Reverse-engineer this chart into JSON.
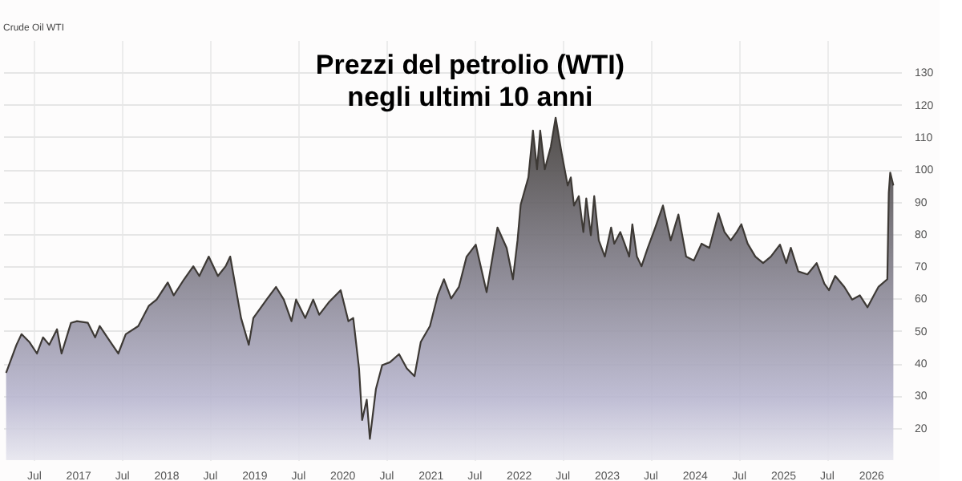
{
  "chart_data": {
    "type": "area",
    "title": "Prezzi del petrolio (WTI)\nnegli ultimi 10 anni",
    "annotations": [
      "Crude Oil WTI"
    ],
    "x": [
      "2016-03-06",
      "2016-04-18",
      "2016-05-09",
      "2016-06-10",
      "2016-07-12",
      "2016-08-06",
      "2016-09-01",
      "2016-10-03",
      "2016-10-22",
      "2016-11-30",
      "2016-12-25",
      "2017-02-08",
      "2017-03-10",
      "2017-03-29",
      "2017-05-12",
      "2017-06-14",
      "2017-07-15",
      "2017-09-05",
      "2017-10-19",
      "2017-11-20",
      "2018-01-05",
      "2018-01-30",
      "2018-03-14",
      "2018-04-21",
      "2018-05-16",
      "2018-06-24",
      "2018-08-01",
      "2018-09-02",
      "2018-09-21",
      "2018-11-05",
      "2018-12-07",
      "2018-12-26",
      "2019-02-22",
      "2019-03-30",
      "2019-05-01",
      "2019-06-02",
      "2019-06-21",
      "2019-07-29",
      "2019-08-31",
      "2019-09-25",
      "2019-11-03",
      "2019-12-23",
      "2020-01-24",
      "2020-02-13",
      "2020-03-08",
      "2020-03-21",
      "2020-04-09",
      "2020-04-22",
      "2020-05-17",
      "2020-06-12",
      "2020-07-14",
      "2020-08-21",
      "2020-09-22",
      "2020-10-24",
      "2020-11-19",
      "2020-12-27",
      "2021-01-28",
      "2021-02-23",
      "2021-03-25",
      "2021-04-26",
      "2021-05-28",
      "2021-07-05",
      "2021-08-19",
      "2021-10-03",
      "2021-11-10",
      "2021-12-06",
      "2021-12-25",
      "2022-01-07",
      "2022-02-08",
      "2022-02-27",
      "2022-03-16",
      "2022-03-29",
      "2022-04-17",
      "2022-05-12",
      "2022-06-01",
      "2022-06-26",
      "2022-07-21",
      "2022-08-03",
      "2022-08-16",
      "2022-09-05",
      "2022-09-24",
      "2022-10-06",
      "2022-10-25",
      "2022-11-08",
      "2022-11-27",
      "2022-12-22",
      "2023-01-17",
      "2023-01-30",
      "2023-02-24",
      "2023-03-14",
      "2023-04-02",
      "2023-04-15",
      "2023-05-04",
      "2023-05-23",
      "2023-06-18",
      "2023-07-19",
      "2023-08-20",
      "2023-09-21",
      "2023-10-23",
      "2023-11-24",
      "2023-12-26",
      "2024-01-27",
      "2024-02-28",
      "2024-04-06",
      "2024-05-01",
      "2024-05-27",
      "2024-06-21",
      "2024-07-10",
      "2024-08-05",
      "2024-09-06",
      "2024-10-08",
      "2024-11-09",
      "2024-12-17",
      "2025-01-12",
      "2025-01-31",
      "2025-03-03",
      "2025-04-10",
      "2025-05-18",
      "2025-06-19",
      "2025-07-08",
      "2025-08-03",
      "2025-09-10",
      "2025-10-12",
      "2025-11-13",
      "2025-12-15",
      "2026-01-10",
      "2026-01-29",
      "2026-03-07",
      "2026-03-13",
      "2026-03-19",
      "2026-04-01"
    ],
    "series": [
      {
        "color": "#3d3935",
        "values": [
          37,
          45.7,
          49,
          46.6,
          43,
          48,
          45.7,
          50.5,
          43,
          52.5,
          53,
          52.5,
          48,
          51.5,
          46.6,
          43,
          49,
          51.5,
          57.8,
          59.7,
          65,
          61,
          66,
          70,
          67,
          73,
          67,
          70,
          73,
          54,
          45.7,
          54,
          60,
          63.6,
          59.7,
          53,
          59.7,
          54,
          59.7,
          55,
          58.8,
          62.6,
          53,
          54,
          38.4,
          22.4,
          28.7,
          16.6,
          32,
          39.4,
          40.3,
          42.8,
          38.4,
          36,
          46.6,
          51.5,
          61,
          66,
          60,
          63.6,
          73,
          76.7,
          62,
          82,
          75.7,
          66,
          78,
          89,
          97.5,
          112,
          100,
          112,
          100,
          107,
          116,
          105,
          95,
          97.5,
          88.8,
          91.7,
          80.6,
          91,
          79.6,
          91.7,
          78,
          73,
          82,
          77,
          80.6,
          77,
          73,
          83,
          73,
          70,
          75.7,
          82,
          88.8,
          78,
          86,
          73,
          71.8,
          77,
          75.7,
          86.4,
          80.6,
          78,
          80.6,
          83,
          77,
          73,
          71,
          73,
          76.7,
          71,
          75.7,
          68.4,
          67.5,
          71,
          64.6,
          62.6,
          67,
          63.6,
          59.7,
          61,
          57.3,
          61,
          63.6,
          66,
          92.7,
          99,
          95
        ]
      }
    ],
    "xlim": [
      "2016-02-23",
      "2026-05-03"
    ],
    "xticks": [
      {
        "value": "2016-07-01",
        "label": "Jul"
      },
      {
        "value": "2017-01-01",
        "label": "2017"
      },
      {
        "value": "2017-07-01",
        "label": "Jul"
      },
      {
        "value": "2018-01-01",
        "label": "2018"
      },
      {
        "value": "2018-07-01",
        "label": "Jul"
      },
      {
        "value": "2019-01-01",
        "label": "2019"
      },
      {
        "value": "2019-07-01",
        "label": "Jul"
      },
      {
        "value": "2020-01-01",
        "label": "2020"
      },
      {
        "value": "2020-07-01",
        "label": "Jul"
      },
      {
        "value": "2021-01-01",
        "label": "2021"
      },
      {
        "value": "2021-07-01",
        "label": "Jul"
      },
      {
        "value": "2022-01-01",
        "label": "2022"
      },
      {
        "value": "2022-07-01",
        "label": "Jul"
      },
      {
        "value": "2023-01-01",
        "label": "2023"
      },
      {
        "value": "2023-07-01",
        "label": "Jul"
      },
      {
        "value": "2024-01-01",
        "label": "2024"
      },
      {
        "value": "2024-07-01",
        "label": "Jul"
      },
      {
        "value": "2025-01-01",
        "label": "2025"
      },
      {
        "value": "2025-07-01",
        "label": "Jul"
      },
      {
        "value": "2026-01-01",
        "label": "2026"
      }
    ],
    "ylim": [
      10,
      140
    ],
    "yticks": [
      20,
      30,
      40,
      50,
      60,
      70,
      80,
      90,
      100,
      110,
      120,
      130
    ],
    "grid": true
  }
}
